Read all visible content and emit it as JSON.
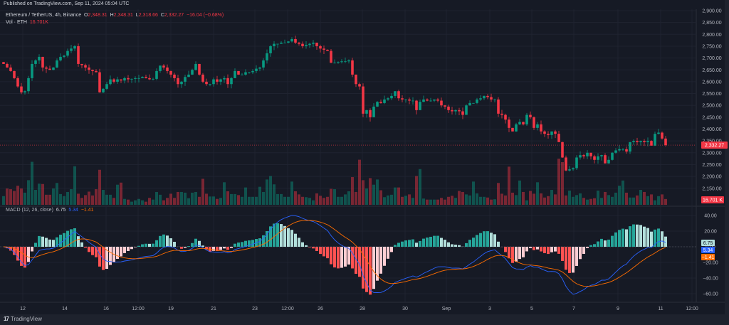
{
  "header": {
    "published": "Published on TradingView.com, Sep 11, 2024 05:04 UTC"
  },
  "legend": {
    "symbol": "Ethereum / TetherUS, 4h, Binance",
    "o_label": "O",
    "o": "2,348.31",
    "h_label": "H",
    "h": "2,348.31",
    "l_label": "L",
    "l": "2,318.66",
    "c_label": "C",
    "c": "2,332.27",
    "change": "−16.04 (−0.68%)",
    "vol_label": "Vol · ETH",
    "vol": "16.701K"
  },
  "macd_legend": {
    "title": "MACD (12, 26, close)",
    "hist": "6.75",
    "macd": "5.34",
    "signal": "−1.41"
  },
  "colors": {
    "up": "#089981",
    "down": "#f23645",
    "macd": "#2962ff",
    "signal": "#ff6d00",
    "background": "#161a25"
  },
  "chart_data": [
    {
      "type": "candlestick",
      "interval": "4h",
      "price_ticks": [
        "2,900.00",
        "2,850.00",
        "2,800.00",
        "2,750.00",
        "2,700.00",
        "2,650.00",
        "2,600.00",
        "2,550.00",
        "2,500.00",
        "2,450.00",
        "2,400.00",
        "2,350.00",
        "2,300.00",
        "2,250.00",
        "2,200.00",
        "2,150.00"
      ],
      "ylim": [
        2130,
        2905
      ],
      "last_price_label": "2,332.27",
      "last_volume_label": "16.701 K",
      "x_ticks": [
        "12",
        "14",
        "16",
        "12:00",
        "19",
        "21",
        "23",
        "12:00",
        "26",
        "28",
        "30",
        "Sep",
        "3",
        "5",
        "7",
        "9",
        "11",
        "12:00"
      ],
      "closes": [
        2675,
        2660,
        2645,
        2615,
        2580,
        2555,
        2560,
        2615,
        2675,
        2690,
        2705,
        2660,
        2655,
        2650,
        2660,
        2690,
        2705,
        2710,
        2730,
        2740,
        2750,
        2675,
        2670,
        2660,
        2650,
        2645,
        2640,
        2555,
        2570,
        2590,
        2610,
        2600,
        2610,
        2605,
        2615,
        2610,
        2612,
        2615,
        2615,
        2620,
        2615,
        2610,
        2612,
        2645,
        2668,
        2660,
        2645,
        2630,
        2615,
        2590,
        2600,
        2620,
        2630,
        2650,
        2675,
        2630,
        2600,
        2590,
        2590,
        2610,
        2600,
        2610,
        2615,
        2590,
        2615,
        2645,
        2630,
        2630,
        2640,
        2640,
        2645,
        2655,
        2660,
        2690,
        2720,
        2750,
        2760,
        2760,
        2765,
        2765,
        2770,
        2780,
        2765,
        2760,
        2750,
        2755,
        2760,
        2765,
        2750,
        2740,
        2735,
        2730,
        2680,
        2680,
        2683,
        2686,
        2686,
        2690,
        2630,
        2590,
        2580,
        2465,
        2480,
        2450,
        2495,
        2515,
        2510,
        2525,
        2530,
        2540,
        2560,
        2530,
        2525,
        2525,
        2520,
        2520,
        2480,
        2515,
        2525,
        2520,
        2520,
        2525,
        2520,
        2500,
        2495,
        2480,
        2475,
        2480,
        2475,
        2460,
        2500,
        2510,
        2510,
        2525,
        2530,
        2540,
        2535,
        2525,
        2525,
        2465,
        2460,
        2440,
        2405,
        2390,
        2420,
        2430,
        2420,
        2460,
        2450,
        2405,
        2420,
        2390,
        2380,
        2375,
        2390,
        2380,
        2345,
        2280,
        2225,
        2230,
        2235,
        2280,
        2290,
        2285,
        2300,
        2285,
        2270,
        2285,
        2290,
        2255,
        2270,
        2300,
        2310,
        2315,
        2315,
        2305,
        2345,
        2350,
        2345,
        2350,
        2345,
        2350,
        2330,
        2380,
        2385,
        2360,
        2332.27
      ],
      "volumes_k": [
        25,
        47,
        45,
        40,
        55,
        47,
        35,
        71,
        124,
        43,
        61,
        60,
        29,
        29,
        47,
        63,
        31,
        25,
        37,
        45,
        111,
        32,
        20,
        28,
        38,
        27,
        45,
        101,
        43,
        29,
        29,
        20,
        58,
        64,
        17,
        15,
        9,
        13,
        17,
        13,
        9,
        20,
        15,
        37,
        29,
        13,
        20,
        32,
        20,
        37,
        37,
        35,
        19,
        35,
        37,
        23,
        75,
        32,
        24,
        24,
        17,
        20,
        65,
        39,
        31,
        31,
        28,
        23,
        50,
        23,
        23,
        23,
        52,
        37,
        73,
        83,
        59,
        31,
        31,
        23,
        23,
        67,
        39,
        30,
        23,
        22,
        20,
        13,
        33,
        26,
        20,
        23,
        46,
        45,
        23,
        23,
        30,
        39,
        80,
        37,
        130,
        71,
        47,
        77,
        58,
        73,
        42,
        22,
        27,
        29,
        50,
        50,
        23,
        26,
        30,
        20,
        83,
        103,
        18,
        15,
        15,
        15,
        15,
        20,
        15,
        23,
        26,
        20,
        40,
        37,
        30,
        27,
        67,
        33,
        23,
        23,
        21,
        15,
        16,
        63,
        32,
        27,
        110,
        35,
        28,
        70,
        37,
        13,
        40,
        32,
        65,
        33,
        21,
        25,
        43,
        30,
        133,
        123,
        27,
        41,
        23,
        28,
        33,
        20,
        15,
        17,
        19,
        41,
        20,
        37,
        28,
        23,
        35,
        55,
        70,
        35,
        21,
        21,
        27,
        43,
        37,
        25,
        30,
        13,
        25,
        30,
        16.701
      ]
    },
    {
      "type": "macd",
      "params": [
        12,
        26
      ],
      "source": "close",
      "y_ticks": [
        "40.00",
        "20.00",
        "0.00",
        "−20.00",
        "−40.00",
        "−60.00"
      ],
      "ylim": [
        -65,
        50
      ],
      "hist_label": "6.75",
      "macd_label": "5.34",
      "signal_label": "−1.41"
    }
  ]
}
